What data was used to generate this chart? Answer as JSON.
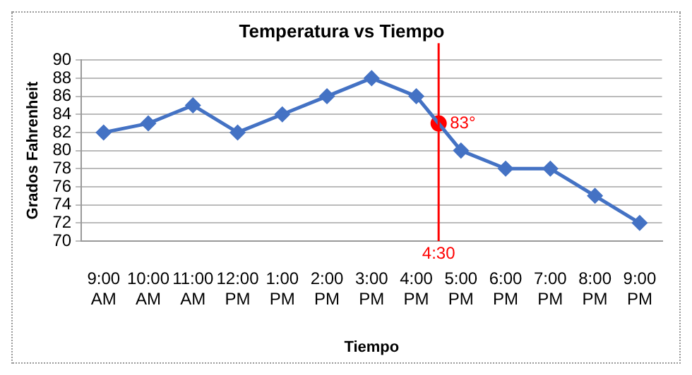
{
  "chart_data": {
    "type": "line",
    "title": "Temperatura vs Tiempo",
    "xlabel": "Tiempo",
    "ylabel": "Grados Fahrenheit",
    "x": [
      9,
      10,
      11,
      12,
      13,
      14,
      15,
      16,
      17,
      18,
      19,
      20,
      21
    ],
    "series": [
      {
        "color": "#4472c4",
        "marker": "diamond",
        "values": [
          82,
          83,
          85,
          82,
          84,
          86,
          88,
          86,
          80,
          78,
          78,
          75,
          72
        ]
      },
      {
        "type": "scatter",
        "color": "#ff0000",
        "marker": "circle",
        "x": [
          16.5
        ],
        "values": [
          83
        ]
      }
    ],
    "xlim": [
      8.5,
      21.5
    ],
    "xticks": [
      {
        "value": 9,
        "label": "9:00 AM"
      },
      {
        "value": 10,
        "label": "10:00 AM"
      },
      {
        "value": 11,
        "label": "11:00 AM"
      },
      {
        "value": 12,
        "label": "12:00 PM"
      },
      {
        "value": 13,
        "label": "1:00 PM"
      },
      {
        "value": 14,
        "label": "2:00 PM"
      },
      {
        "value": 15,
        "label": "3:00 PM"
      },
      {
        "value": 16,
        "label": "4:00 PM"
      },
      {
        "value": 17,
        "label": "5:00 PM"
      },
      {
        "value": 18,
        "label": "6:00 PM"
      },
      {
        "value": 19,
        "label": "7:00 PM"
      },
      {
        "value": 20,
        "label": "8:00 PM"
      },
      {
        "value": 21,
        "label": "9:00 PM"
      }
    ],
    "ylim": [
      70,
      90
    ],
    "yticks": [
      70,
      72,
      74,
      76,
      78,
      80,
      82,
      84,
      86,
      88,
      90
    ],
    "ref_lines": [
      {
        "axis": "x",
        "value": 16.5,
        "color": "#ff0000"
      }
    ],
    "annotations": [
      {
        "text": "83°",
        "x": 16.5,
        "y": 83
      },
      {
        "text": "4:30",
        "x": 16.5,
        "y": 70
      }
    ],
    "grid": "y",
    "legend": false,
    "line_style": "solid"
  }
}
